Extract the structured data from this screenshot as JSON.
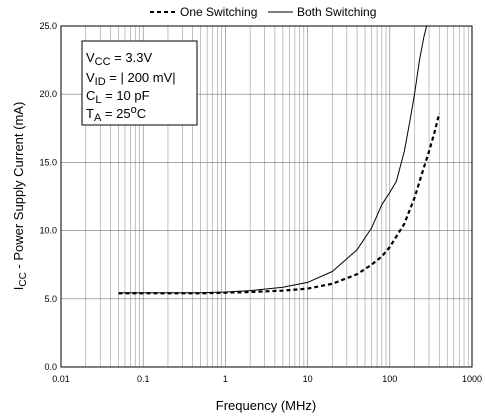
{
  "chart_data": {
    "type": "line",
    "xlabel": "Frequency (MHz)",
    "ylabel": "I",
    "ylabel_sub": "CC",
    "ylabel_rest": " - Power Supply Current (mA)",
    "x_scale": "log",
    "xlim": [
      0.01,
      1000
    ],
    "ylim": [
      0,
      25
    ],
    "x_ticks": [
      0.01,
      0.1,
      1,
      10,
      100,
      1000
    ],
    "x_tick_labels": [
      "0.01",
      "0.1",
      "1",
      "10",
      "100",
      "1000"
    ],
    "y_ticks": [
      0,
      5,
      10,
      15,
      20,
      25
    ],
    "y_tick_labels": [
      "0.0",
      "5.0",
      "10.0",
      "15.0",
      "20.0",
      "25.0"
    ],
    "grid": true,
    "legend_position": "top",
    "series": [
      {
        "name": "One Switching",
        "style": "dashed",
        "x": [
          0.05,
          0.1,
          0.2,
          0.5,
          1,
          2,
          5,
          10,
          20,
          40,
          60,
          80,
          100,
          150,
          200,
          250,
          300,
          350,
          400
        ],
        "y": [
          5.4,
          5.4,
          5.4,
          5.4,
          5.45,
          5.5,
          5.6,
          5.75,
          6.1,
          6.8,
          7.5,
          8.1,
          8.8,
          10.5,
          12.4,
          14.3,
          15.8,
          17.2,
          18.6
        ]
      },
      {
        "name": "Both Switching",
        "style": "solid",
        "x": [
          0.05,
          0.1,
          0.2,
          0.5,
          1,
          2,
          5,
          10,
          20,
          40,
          60,
          80,
          100,
          120,
          150,
          180,
          200,
          230,
          260,
          280
        ],
        "y": [
          5.45,
          5.45,
          5.45,
          5.45,
          5.5,
          5.6,
          5.85,
          6.2,
          7.0,
          8.6,
          10.2,
          11.9,
          12.8,
          13.6,
          15.8,
          18.4,
          20.0,
          22.5,
          24.2,
          25.0
        ]
      }
    ],
    "conditions": [
      {
        "main": "V",
        "sub": "CC",
        "rest": " = 3.3V"
      },
      {
        "main": "V",
        "sub": "ID",
        "rest": "  = | 200 mV|"
      },
      {
        "main": "C",
        "sub": "L",
        "rest": "  = 10 pF"
      },
      {
        "main": "T",
        "sub": "A",
        "rest": "  = 25",
        "sup": "o",
        "rest2": "C"
      }
    ]
  }
}
